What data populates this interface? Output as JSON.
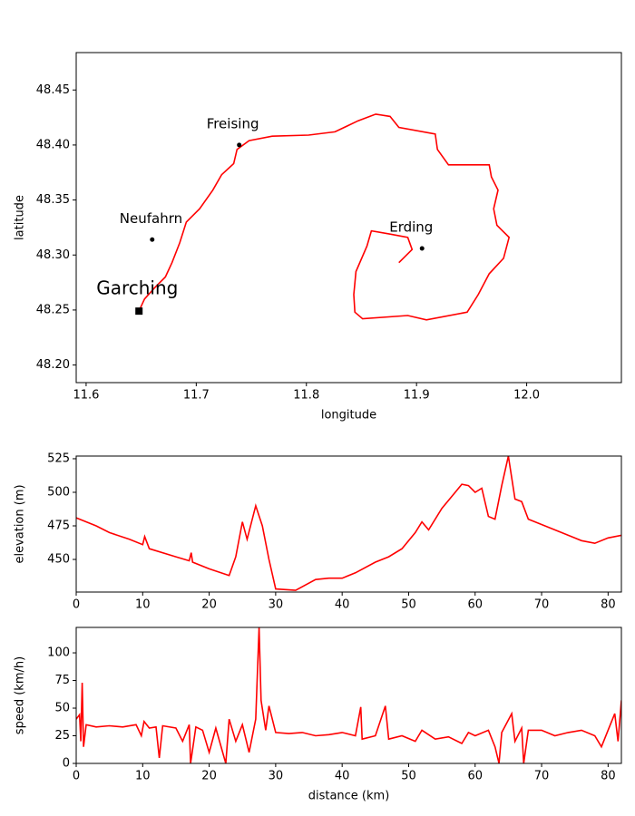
{
  "chart_data": [
    {
      "type": "map",
      "xlabel": "longitude",
      "ylabel": "latitude",
      "xlim": [
        11.591,
        12.086
      ],
      "ylim": [
        48.184,
        48.484
      ],
      "xticks": [
        11.6,
        11.7,
        11.8,
        11.9,
        {
          "value": 12,
          "label": "12.0"
        }
      ],
      "yticks": [
        {
          "value": 48.2,
          "label": "48.20"
        },
        48.25,
        {
          "value": 48.3,
          "label": "48.30"
        },
        48.35,
        {
          "value": 48.4,
          "label": "48.40"
        },
        48.45
      ],
      "series": [
        {
          "color": "#ff0000",
          "x": [
            11.648,
            11.653,
            11.662,
            11.672,
            11.678,
            11.685,
            11.691,
            11.703,
            11.715,
            11.723,
            11.734,
            11.737,
            11.748,
            11.769,
            11.802,
            11.826,
            11.847,
            11.863,
            11.876,
            11.884,
            11.917,
            11.919,
            11.929,
            11.966,
            11.968,
            11.974,
            11.97,
            11.973,
            11.984,
            11.979,
            11.966,
            11.956,
            11.946,
            11.909,
            11.892,
            11.851,
            11.844,
            11.843,
            11.845,
            11.855,
            11.859,
            11.876,
            11.892,
            11.896,
            11.884
          ],
          "y": [
            48.249,
            48.26,
            48.27,
            48.28,
            48.293,
            48.311,
            48.33,
            48.342,
            48.359,
            48.373,
            48.383,
            48.396,
            48.404,
            48.408,
            48.409,
            48.412,
            48.422,
            48.428,
            48.426,
            48.416,
            48.41,
            48.396,
            48.382,
            48.382,
            48.371,
            48.359,
            48.342,
            48.327,
            48.316,
            48.297,
            48.283,
            48.264,
            48.248,
            48.241,
            48.245,
            48.242,
            48.248,
            48.264,
            48.285,
            48.308,
            48.322,
            48.319,
            48.316,
            48.305,
            48.293
          ]
        }
      ],
      "places": [
        {
          "label": "Garching",
          "lon": 11.648,
          "lat": 48.249,
          "marker": "s"
        },
        {
          "label": "Neufahrn",
          "lon": 11.66,
          "lat": 48.314,
          "marker": "o"
        },
        {
          "label": "Freising",
          "lon": 11.739,
          "lat": 48.4,
          "marker": "o"
        },
        {
          "label": "Erding",
          "lon": 11.905,
          "lat": 48.306,
          "marker": "o"
        }
      ]
    },
    {
      "type": "line",
      "ylabel": "elevation (m)",
      "color": "#ff0000",
      "xlim": [
        0,
        82
      ],
      "ylim": [
        425.7,
        527
      ],
      "xticks": [
        0,
        10,
        20,
        30,
        40,
        50,
        60,
        70,
        80
      ],
      "yticks": [
        450,
        475,
        500,
        525
      ],
      "x": [
        0,
        3,
        5,
        8,
        10,
        10.3,
        11,
        15,
        17,
        17.3,
        17.5,
        20,
        23,
        24,
        25,
        25.7,
        27,
        28,
        29,
        30,
        33,
        36,
        38,
        40,
        42,
        45,
        47,
        49,
        51,
        52,
        53,
        55,
        57,
        58,
        59,
        60,
        61,
        62,
        63,
        64,
        65,
        66,
        67,
        68,
        70,
        73,
        76,
        78,
        80,
        82
      ],
      "values": [
        481,
        475,
        470,
        465,
        461,
        467,
        458,
        452,
        449,
        455,
        448,
        443,
        438,
        452,
        478,
        465,
        490,
        475,
        450,
        428,
        427,
        435,
        436,
        436,
        440,
        448,
        452,
        458,
        470,
        478,
        472,
        488,
        500,
        506,
        505,
        500,
        503,
        482,
        480,
        505,
        527,
        495,
        493,
        480,
        476,
        470,
        464,
        462,
        466,
        468
      ]
    },
    {
      "type": "line",
      "xlabel": "distance (km)",
      "ylabel": "speed (km/h)",
      "color": "#ff0000",
      "xlim": [
        0,
        82
      ],
      "ylim": [
        0,
        123
      ],
      "xticks": [
        0,
        10,
        20,
        30,
        40,
        50,
        60,
        70,
        80
      ],
      "yticks": [
        0,
        25,
        50,
        75,
        100
      ],
      "x": [
        0,
        0.5,
        0.7,
        0.9,
        1.1,
        1.5,
        3,
        5,
        7,
        9,
        9.8,
        10.2,
        11,
        12,
        12.5,
        13,
        15,
        16,
        17,
        17.2,
        18,
        19,
        20,
        21,
        22.5,
        23,
        24,
        25,
        26,
        27,
        27.5,
        27.8,
        28.5,
        29,
        30,
        32,
        34,
        36,
        38,
        40,
        42,
        42.8,
        43,
        45,
        46.5,
        47,
        49,
        51,
        52,
        54,
        56,
        58,
        59,
        60,
        62,
        63,
        63.6,
        64,
        65.5,
        66,
        67,
        67.3,
        68,
        70,
        72,
        74,
        76,
        78,
        79,
        80,
        81,
        81.5,
        82
      ],
      "values": [
        40,
        44,
        20,
        73,
        15,
        35,
        33,
        34,
        33,
        35,
        25,
        38,
        32,
        33,
        5,
        34,
        32,
        20,
        35,
        0,
        33,
        30,
        10,
        32,
        0,
        40,
        20,
        35,
        10,
        40,
        123,
        57,
        30,
        52,
        28,
        27,
        28,
        25,
        26,
        28,
        25,
        51,
        22,
        25,
        52,
        22,
        25,
        20,
        30,
        22,
        24,
        18,
        28,
        25,
        30,
        15,
        0,
        28,
        45,
        20,
        32,
        0,
        30,
        30,
        25,
        28,
        30,
        25,
        15,
        30,
        45,
        20,
        57
      ]
    }
  ]
}
